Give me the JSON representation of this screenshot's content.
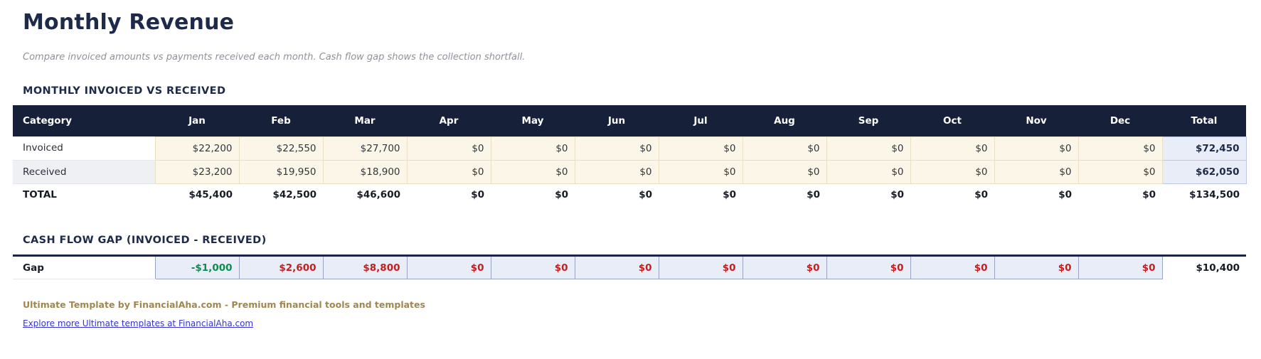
{
  "header": {
    "title": "Monthly Revenue",
    "subtitle": "Compare invoiced amounts vs payments received each month. Cash flow gap shows the collection shortfall."
  },
  "main_table": {
    "section_title": "MONTHLY INVOICED VS RECEIVED",
    "columns": [
      "Category",
      "Jan",
      "Feb",
      "Mar",
      "Apr",
      "May",
      "Jun",
      "Jul",
      "Aug",
      "Sep",
      "Oct",
      "Nov",
      "Dec",
      "Total"
    ],
    "rows": [
      {
        "label": "Invoiced",
        "monthly": [
          "$22,200",
          "$22,550",
          "$27,700",
          "$0",
          "$0",
          "$0",
          "$0",
          "$0",
          "$0",
          "$0",
          "$0",
          "$0"
        ],
        "total": "$72,450"
      },
      {
        "label": "Received",
        "monthly": [
          "$23,200",
          "$19,950",
          "$18,900",
          "$0",
          "$0",
          "$0",
          "$0",
          "$0",
          "$0",
          "$0",
          "$0",
          "$0"
        ],
        "total": "$62,050"
      }
    ],
    "total_row": {
      "label": "TOTAL",
      "monthly": [
        "$45,400",
        "$42,500",
        "$46,600",
        "$0",
        "$0",
        "$0",
        "$0",
        "$0",
        "$0",
        "$0",
        "$0",
        "$0"
      ],
      "total": "$134,500"
    }
  },
  "gap_table": {
    "section_title": "CASH FLOW GAP (INVOICED - RECEIVED)",
    "row": {
      "label": "Gap",
      "monthly": [
        {
          "text": "-$1,000",
          "tone": "green"
        },
        {
          "text": "$2,600",
          "tone": "red"
        },
        {
          "text": "$8,800",
          "tone": "red"
        },
        {
          "text": "$0",
          "tone": "red"
        },
        {
          "text": "$0",
          "tone": "red"
        },
        {
          "text": "$0",
          "tone": "red"
        },
        {
          "text": "$0",
          "tone": "red"
        },
        {
          "text": "$0",
          "tone": "red"
        },
        {
          "text": "$0",
          "tone": "red"
        },
        {
          "text": "$0",
          "tone": "red"
        },
        {
          "text": "$0",
          "tone": "red"
        },
        {
          "text": "$0",
          "tone": "red"
        }
      ],
      "total": "$10,400"
    }
  },
  "footer": {
    "branding": "Ultimate Template by FinancialAha.com - Premium financial tools and templates",
    "link_text": "Explore more Ultimate templates at FinancialAha.com"
  },
  "colors": {
    "header_navy": "#162039",
    "accent_navy": "#1e2a4a",
    "cream_cell": "#fbf6e7",
    "lavender_cell": "#e9edf8",
    "green_value": "#0e8c4f",
    "red_value": "#c41f1f",
    "footer_gold": "#a0874f",
    "link_blue": "#3434cf"
  }
}
